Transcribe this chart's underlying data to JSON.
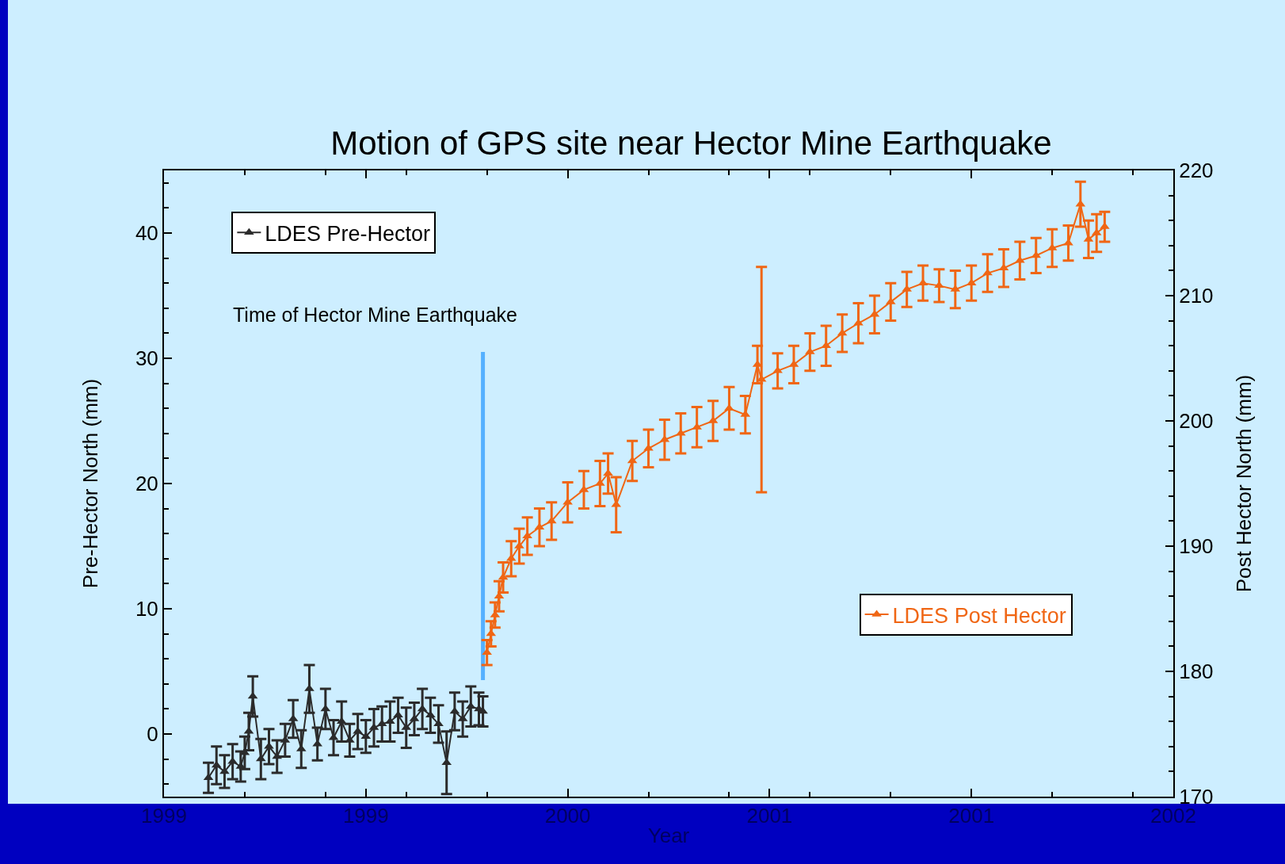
{
  "chart_data": {
    "type": "line",
    "title": "Motion of GPS site near Hector Mine Earthquake",
    "xlabel": "Year",
    "ylabel": "Pre-Hector North (mm)",
    "y2label": "Post Hector North (mm)",
    "annotations": [
      "Time of Hector Mine Earthquake"
    ],
    "xlim": [
      1999,
      2001.5
    ],
    "xticks": [
      1999,
      {
        "value": 1999.5,
        "label": "1999"
      },
      2000,
      {
        "value": 2000.5,
        "label": "2001"
      },
      2001,
      {
        "value": 2001.5,
        "label": "2002"
      }
    ],
    "ylim": [
      -5,
      45
    ],
    "yticks": [
      0,
      10,
      20,
      30,
      40
    ],
    "y2lim": [
      170,
      220
    ],
    "y2ticks": [
      170,
      180,
      190,
      200,
      210,
      220
    ],
    "grid": false,
    "legend": "top left",
    "marker": "triangle",
    "line_style": "solid",
    "series": [
      {
        "name": "LDES Pre-Hector",
        "color": "#2b2b2b",
        "x": [
          1999.11,
          1999.13,
          1999.15,
          1999.17,
          1999.19,
          1999.2,
          1999.21,
          1999.22,
          1999.24,
          1999.26,
          1999.28,
          1999.3,
          1999.32,
          1999.34,
          1999.36,
          1999.38,
          1999.4,
          1999.42,
          1999.44,
          1999.46,
          1999.48,
          1999.5,
          1999.52,
          1999.54,
          1999.56,
          1999.58,
          1999.6,
          1999.62,
          1999.64,
          1999.66,
          1999.68,
          1999.7,
          1999.72,
          1999.74,
          1999.76,
          1999.78,
          1999.79
        ],
        "values": [
          -3.5,
          -2.5,
          -3,
          -2.2,
          -2.6,
          -1.5,
          0.2,
          3,
          -2,
          -1,
          -1.8,
          -0.5,
          1.2,
          -1.2,
          3.6,
          -0.8,
          2,
          -0.3,
          1,
          -0.5,
          0.2,
          -0.2,
          0.5,
          0.8,
          1,
          1.5,
          0.5,
          1.2,
          2,
          1.5,
          0.8,
          -2.3,
          1.8,
          1.2,
          2.2,
          2,
          1.8
        ],
        "errors": [
          1.2,
          1.5,
          1.3,
          1.4,
          1.2,
          1.3,
          1.5,
          1.6,
          1.6,
          1.4,
          1.3,
          1.3,
          1.5,
          1.5,
          1.9,
          1.3,
          1.6,
          1.4,
          1.6,
          1.3,
          1.4,
          1.3,
          1.5,
          1.4,
          1.6,
          1.4,
          1.6,
          1.3,
          1.6,
          1.4,
          1.5,
          2.5,
          1.5,
          1.4,
          1.6,
          1.3,
          1.2
        ]
      },
      {
        "name": "LDES Post Hector",
        "color": "#f06614",
        "axis": "y2",
        "x": [
          1999.8,
          1999.81,
          1999.82,
          1999.83,
          1999.84,
          1999.86,
          1999.88,
          1999.9,
          1999.93,
          1999.96,
          2000,
          2000.04,
          2000.08,
          2000.1,
          2000.12,
          2000.16,
          2000.2,
          2000.24,
          2000.28,
          2000.32,
          2000.36,
          2000.4,
          2000.44,
          2000.47,
          2000.48,
          2000.52,
          2000.56,
          2000.6,
          2000.64,
          2000.68,
          2000.72,
          2000.76,
          2000.8,
          2000.84,
          2000.88,
          2000.92,
          2000.96,
          2001,
          2001.04,
          2001.08,
          2001.12,
          2001.16,
          2001.2,
          2001.24,
          2001.27,
          2001.29,
          2001.31,
          2001.33
        ],
        "values": [
          181.5,
          183,
          184.5,
          186,
          187.5,
          189,
          190,
          190.8,
          191.5,
          192,
          193.5,
          194.5,
          195,
          195.8,
          193.3,
          196.8,
          197.8,
          198.5,
          199,
          199.5,
          200,
          201,
          200.5,
          204.5,
          203.3,
          204,
          204.5,
          205.5,
          206,
          207,
          207.8,
          208.5,
          209.5,
          210.5,
          211,
          210.8,
          210.5,
          211,
          211.8,
          212.2,
          212.8,
          213.2,
          213.8,
          214.2,
          217.3,
          214.5,
          215,
          215.5
        ],
        "errors": [
          1,
          1,
          1,
          1.2,
          1.2,
          1.4,
          1.4,
          1.5,
          1.5,
          1.5,
          1.6,
          1.5,
          1.8,
          1.6,
          2.2,
          1.6,
          1.5,
          1.6,
          1.6,
          1.6,
          1.6,
          1.7,
          1.5,
          1.5,
          9,
          1.4,
          1.5,
          1.5,
          1.6,
          1.5,
          1.6,
          1.5,
          1.5,
          1.4,
          1.4,
          1.3,
          1.5,
          1.4,
          1.5,
          1.5,
          1.5,
          1.4,
          1.5,
          1.4,
          1.8,
          1.5,
          1.5,
          1.2
        ]
      },
      {
        "color": "#55b0ff",
        "x": [
          1999.79,
          1999.79
        ],
        "values": [
          4.3,
          30.5
        ],
        "marker": "none"
      }
    ]
  }
}
